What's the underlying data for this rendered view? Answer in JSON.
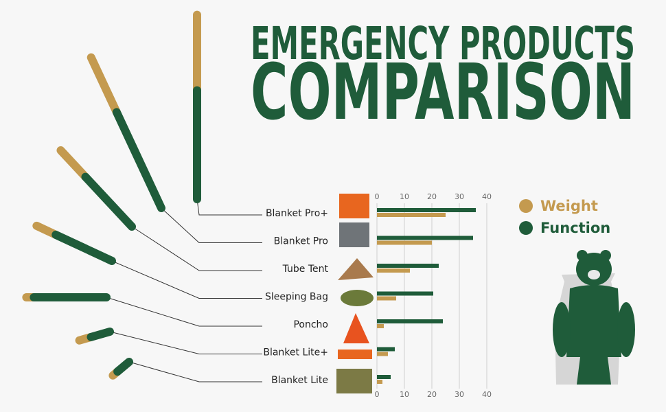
{
  "chart_data": {
    "type": "bar",
    "orientation": "horizontal",
    "title": "EMERGENCY PRODUCTS",
    "subtitle": "COMPARISON",
    "categories": [
      "Blanket Pro+",
      "Blanket Pro",
      "Tube Tent",
      "Sleeping Bag",
      "Poncho",
      "Blanket Lite+",
      "Blanket Lite"
    ],
    "series": [
      {
        "name": "Weight",
        "color": "#c49a4f",
        "values": [
          25,
          20,
          12,
          7,
          2.5,
          4,
          2
        ]
      },
      {
        "name": "Function",
        "color": "#1f5c3a",
        "values": [
          36,
          35,
          22.5,
          20.5,
          24,
          6.5,
          5
        ]
      }
    ],
    "xlim": [
      0,
      40
    ],
    "xticks": [
      0,
      10,
      20,
      30,
      40
    ],
    "grid": true
  }
}
